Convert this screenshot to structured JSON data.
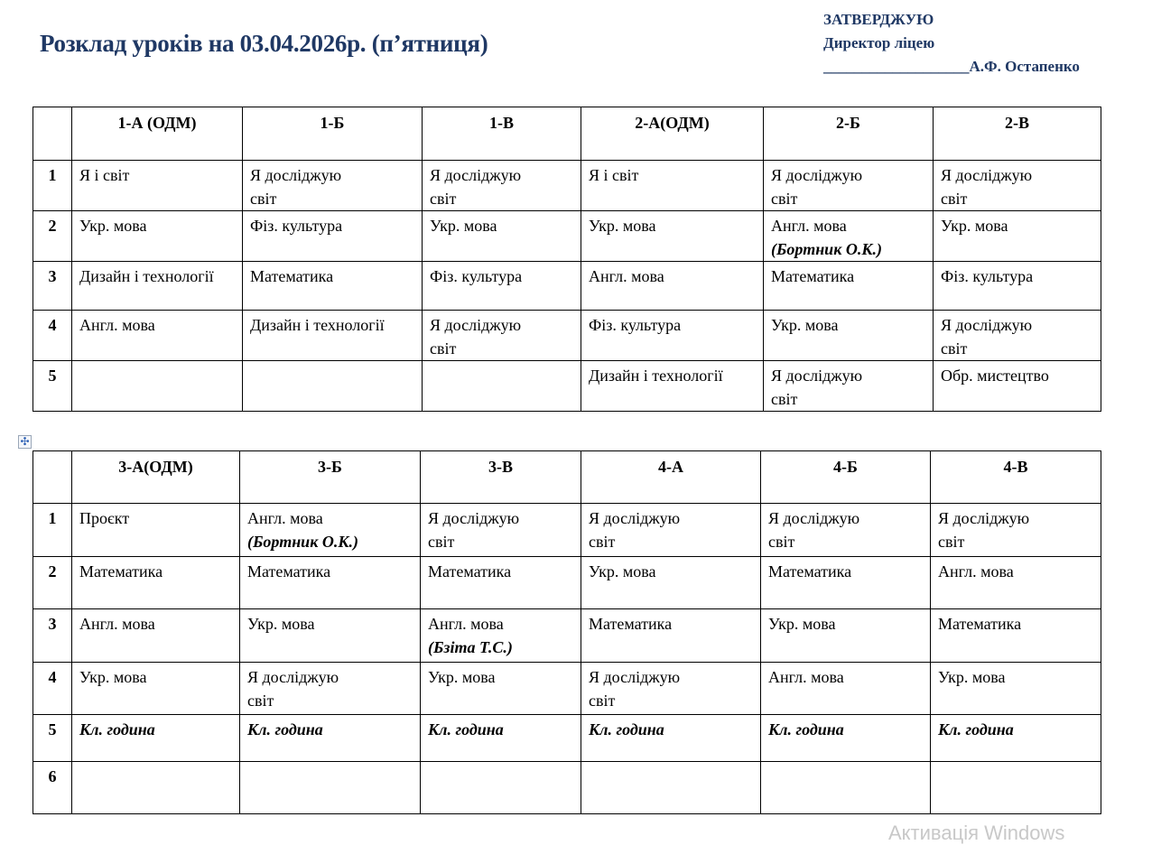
{
  "title": "Розклад уроків на 03.04.2026р. (п’ятниця)",
  "approval": {
    "line1": "ЗАТВЕРДЖУЮ",
    "line2": "Директор ліцею",
    "signature_line": "___________________",
    "signer": "А.Ф. Остапенко"
  },
  "colors": {
    "heading": "#1f3864"
  },
  "tables": [
    {
      "headers": [
        "",
        "1-А (ОДМ)",
        "1-Б",
        "1-В",
        "2-А(ОДМ)",
        "2-Б",
        "2-В"
      ],
      "rows": [
        {
          "num": "1",
          "cells": [
            {
              "text": "Я і світ"
            },
            {
              "text": "Я досліджую\nсвіт"
            },
            {
              "text": "Я досліджую\nсвіт"
            },
            {
              "text": "Я і світ"
            },
            {
              "text": "Я досліджую\nсвіт"
            },
            {
              "text": "Я досліджую\nсвіт"
            }
          ]
        },
        {
          "num": "2",
          "cells": [
            {
              "text": "Укр. мова"
            },
            {
              "text": "Фіз. культура"
            },
            {
              "text": "Укр. мова"
            },
            {
              "text": "Укр. мова"
            },
            {
              "text": "Англ. мова",
              "note": "(Бортник О.К.)"
            },
            {
              "text": "Укр. мова"
            }
          ]
        },
        {
          "num": "3",
          "cells": [
            {
              "text": "Дизайн і технології"
            },
            {
              "text": "Математика"
            },
            {
              "text": "Фіз. культура"
            },
            {
              "text": "Англ. мова"
            },
            {
              "text": "Математика"
            },
            {
              "text": "Фіз. культура"
            }
          ]
        },
        {
          "num": "4",
          "cells": [
            {
              "text": "Англ. мова"
            },
            {
              "text": "Дизайн і технології"
            },
            {
              "text": "Я досліджую\nсвіт"
            },
            {
              "text": "Фіз. культура"
            },
            {
              "text": "Укр. мова"
            },
            {
              "text": "Я досліджую\nсвіт"
            }
          ]
        },
        {
          "num": "5",
          "cells": [
            {
              "text": ""
            },
            {
              "text": ""
            },
            {
              "text": ""
            },
            {
              "text": "Дизайн і технології"
            },
            {
              "text": "Я досліджую\nсвіт"
            },
            {
              "text": "Обр. мистецтво"
            }
          ]
        }
      ]
    },
    {
      "headers": [
        "",
        "3-А(ОДМ)",
        "3-Б",
        "3-В",
        "4-А",
        "4-Б",
        "4-В"
      ],
      "rows": [
        {
          "num": "1",
          "cells": [
            {
              "text": "Проєкт"
            },
            {
              "text": "Англ. мова",
              "note": "(Бортник О.К.)"
            },
            {
              "text": "Я досліджую\nсвіт"
            },
            {
              "text": "Я досліджую\nсвіт"
            },
            {
              "text": "Я досліджую\nсвіт"
            },
            {
              "text": "Я досліджую\nсвіт"
            }
          ]
        },
        {
          "num": "2",
          "cells": [
            {
              "text": "Математика"
            },
            {
              "text": "Математика"
            },
            {
              "text": "Математика"
            },
            {
              "text": "Укр. мова"
            },
            {
              "text": "Математика"
            },
            {
              "text": "Англ. мова"
            }
          ]
        },
        {
          "num": "3",
          "cells": [
            {
              "text": "Англ. мова"
            },
            {
              "text": "Укр. мова"
            },
            {
              "text": "Англ. мова",
              "note": "(Бзіта Т.С.)"
            },
            {
              "text": "Математика"
            },
            {
              "text": "Укр. мова"
            },
            {
              "text": "Математика"
            }
          ]
        },
        {
          "num": "4",
          "cells": [
            {
              "text": "Укр. мова"
            },
            {
              "text": "Я досліджую\nсвіт"
            },
            {
              "text": "Укр. мова"
            },
            {
              "text": "Я досліджую\nсвіт"
            },
            {
              "text": "Англ. мова"
            },
            {
              "text": "Укр. мова"
            }
          ]
        },
        {
          "num": "5",
          "cells": [
            {
              "text": "Кл. година",
              "bold_italic": true
            },
            {
              "text": "Кл. година",
              "bold_italic": true
            },
            {
              "text": "Кл. година",
              "bold_italic": true
            },
            {
              "text": "Кл. година",
              "bold_italic": true
            },
            {
              "text": "Кл. година",
              "bold_italic": true
            },
            {
              "text": "Кл. година",
              "bold_italic": true
            }
          ]
        },
        {
          "num": "6",
          "cells": [
            {
              "text": ""
            },
            {
              "text": ""
            },
            {
              "text": ""
            },
            {
              "text": ""
            },
            {
              "text": ""
            },
            {
              "text": ""
            }
          ]
        }
      ]
    }
  ],
  "watermark": "Активація Windows"
}
